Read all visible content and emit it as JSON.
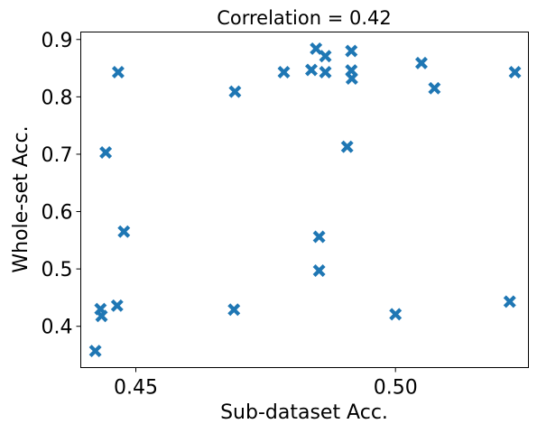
{
  "chart_data": {
    "type": "scatter",
    "title": "Correlation = 0.42",
    "xlabel": "Sub-dataset Acc.",
    "ylabel": "Whole-set Acc.",
    "xlim": [
      0.4394,
      0.5256
    ],
    "ylim": [
      0.328,
      0.913
    ],
    "xticks": [
      0.45,
      0.5
    ],
    "xtick_labels": [
      "0.45",
      "0.50"
    ],
    "yticks": [
      0.4,
      0.5,
      0.6,
      0.7,
      0.8,
      0.9
    ],
    "ytick_labels": [
      "0.4",
      "0.5",
      "0.6",
      "0.7",
      "0.8",
      "0.9"
    ],
    "grid": false,
    "marker": "x",
    "color": "#1f77b4",
    "series": [
      {
        "x": [
          0.4422,
          0.4432,
          0.4434,
          0.4442,
          0.4464,
          0.4466,
          0.4477,
          0.4689,
          0.4691,
          0.4785,
          0.4838,
          0.4847,
          0.4853,
          0.4853,
          0.4865,
          0.4865,
          0.4907,
          0.4915,
          0.4915,
          0.4916,
          0.5,
          0.505,
          0.5075,
          0.522,
          0.523
        ],
        "y": [
          0.357,
          0.43,
          0.418,
          0.703,
          0.436,
          0.843,
          0.565,
          0.429,
          0.809,
          0.843,
          0.847,
          0.884,
          0.556,
          0.497,
          0.871,
          0.843,
          0.713,
          0.88,
          0.846,
          0.832,
          0.421,
          0.859,
          0.815,
          0.443,
          0.843
        ]
      }
    ]
  }
}
